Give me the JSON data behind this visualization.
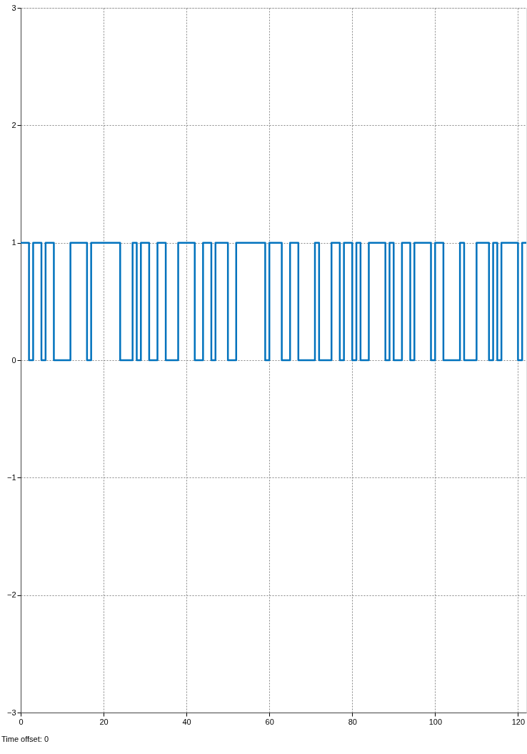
{
  "chart_data": {
    "type": "step",
    "x": [
      0,
      2,
      3,
      5,
      6,
      8,
      12,
      16,
      17,
      24,
      27,
      28,
      29,
      31,
      33,
      35,
      38,
      42,
      44,
      46,
      47,
      50,
      52,
      59,
      60,
      63,
      65,
      67,
      71,
      72,
      75,
      77,
      78,
      80,
      81,
      82,
      84,
      88,
      89,
      90,
      92,
      94,
      95,
      99,
      100,
      102,
      106,
      107,
      110,
      113,
      114,
      115,
      116,
      120,
      121,
      122
    ],
    "series": [
      {
        "color": "#0072bd",
        "values": [
          1,
          0,
          1,
          0,
          1,
          0,
          1,
          0,
          1,
          0,
          1,
          0,
          1,
          0,
          1,
          0,
          1,
          0,
          1,
          0,
          1,
          0,
          1,
          0,
          1,
          0,
          1,
          0,
          1,
          0,
          1,
          0,
          1,
          0,
          1,
          0,
          1,
          0,
          1,
          0,
          1,
          0,
          1,
          0,
          1,
          0,
          1,
          0,
          1,
          0,
          1,
          0,
          1,
          0,
          1,
          1
        ]
      }
    ],
    "xlim": [
      0,
      122
    ],
    "xticks": [
      0,
      20,
      40,
      60,
      80,
      100,
      120
    ],
    "ylim": [
      -3,
      3
    ],
    "yticks": [
      -3,
      -2,
      -1,
      0,
      1,
      2,
      3
    ],
    "grid": true,
    "line_style": "solid",
    "annotations": [
      "Time offset: 0"
    ]
  }
}
